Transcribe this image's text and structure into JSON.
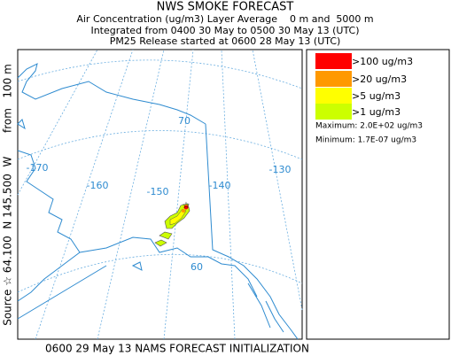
{
  "header": {
    "title": "NWS SMOKE FORECAST",
    "lines": [
      "Air Concentration (ug/m3) Layer Average    0 m and  5000 m",
      "Integrated from 0400 30 May to 0500 30 May 13 (UTC)",
      "PM25 Release started at 0600 28 May 13 (UTC)"
    ]
  },
  "source_label": "Source ☆ 64.100  N 145.500  W       from   100 m",
  "footer": "0600 29 May 13 NAMS FORECAST INITIALIZATION",
  "legend": {
    "items": [
      {
        "label": ">100 ug/m3",
        "color": "#ff0000"
      },
      {
        "label": ">20 ug/m3",
        "color": "#ff9900"
      },
      {
        "label": ">5 ug/m3",
        "color": "#ffff00"
      },
      {
        "label": ">1 ug/m3",
        "color": "#ccff00"
      }
    ],
    "maximum": "Maximum: 2.0E+02 ug/m3",
    "minimum": "Minimum: 1.7E-07 ug/m3"
  },
  "map": {
    "grid_labels": [
      "-170",
      "-160",
      "-150",
      "-140",
      "-130",
      "70",
      "60"
    ]
  }
}
